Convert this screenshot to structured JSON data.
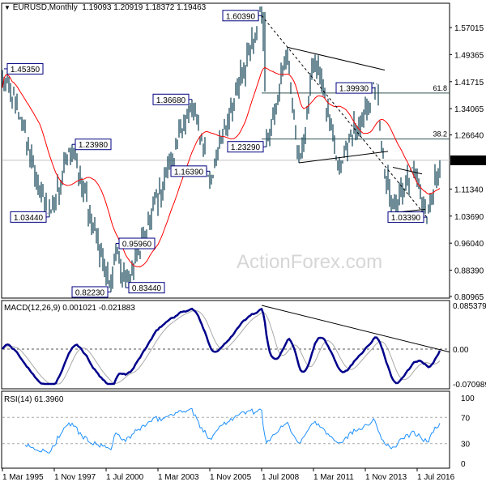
{
  "header": {
    "arrow": "▼",
    "symbol": "EURUSD,Monthly",
    "ohlc": "1.19093 1.20919 1.18372 1.19463"
  },
  "watermark": "ActionForex.com",
  "chart_data": [
    {
      "type": "bar",
      "title": "EURUSD,Monthly",
      "ylim": [
        0.80965,
        1.57015
      ],
      "y_ticks": [
        "1.57015",
        "1.49365",
        "1.41715",
        "1.34065",
        "1.26640",
        "1.19463",
        "1.11340",
        "1.03690",
        "0.96040",
        "0.88390",
        "0.80965"
      ],
      "current_price": "1.19463",
      "keypoints": [
        [
          "1995-03",
          1.4
        ],
        [
          "1995-04",
          1.4535
        ],
        [
          "1996-03",
          1.3
        ],
        [
          "1997-08",
          1.0344
        ],
        [
          "1998-10",
          1.2398
        ],
        [
          "2000-10",
          0.8223
        ],
        [
          "2001-01",
          0.9596
        ],
        [
          "2001-07",
          0.8344
        ],
        [
          "2004-12",
          1.3668
        ],
        [
          "2005-11",
          1.1639
        ],
        [
          "2008-07",
          1.6039
        ],
        [
          "2008-10",
          1.2329
        ],
        [
          "2009-11",
          1.5144
        ],
        [
          "2010-06",
          1.1876
        ],
        [
          "2011-04",
          1.494
        ],
        [
          "2012-07",
          1.2042
        ],
        [
          "2014-05",
          1.3993
        ],
        [
          "2015-03",
          1.0462
        ],
        [
          "2016-05",
          1.1616
        ],
        [
          "2017-01",
          1.0339
        ],
        [
          "2017-09",
          1.19463
        ]
      ],
      "annotations": [
        {
          "text": "1.45350",
          "date": "1995-04",
          "price": 1.4535
        },
        {
          "text": "1.03440",
          "date": "1997-08",
          "price": 1.0344
        },
        {
          "text": "1.23980",
          "date": "1998-10",
          "price": 1.2398
        },
        {
          "text": "0.82230",
          "date": "2000-10",
          "price": 0.8223
        },
        {
          "text": "0.95960",
          "date": "2001-01",
          "price": 0.9596
        },
        {
          "text": "0.83440",
          "date": "2001-07",
          "price": 0.8344
        },
        {
          "text": "1.36680",
          "date": "2004-12",
          "price": 1.3668
        },
        {
          "text": "1.16390",
          "date": "2005-11",
          "price": 1.1639
        },
        {
          "text": "1.60390",
          "date": "2008-07",
          "price": 1.6039
        },
        {
          "text": "1.23290",
          "date": "2008-10",
          "price": 1.2329
        },
        {
          "text": "1.39930",
          "date": "2014-05",
          "price": 1.3993
        },
        {
          "text": "1.03390",
          "date": "2017-01",
          "price": 1.0339
        }
      ],
      "fib_levels": [
        {
          "label": "61.8",
          "price": 1.385
        },
        {
          "label": "38.2",
          "price": 1.255
        }
      ],
      "trendlines": [
        {
          "from": [
            "2008-07",
            1.6039
          ],
          "to": [
            "2017-01",
            1.0339
          ],
          "style": "dashed"
        },
        {
          "from": [
            "2009-11",
            1.5144
          ],
          "to": [
            "2014-11",
            1.45
          ],
          "style": "solid"
        },
        {
          "from": [
            "2010-06",
            1.1876
          ],
          "to": [
            "2015-01",
            1.22
          ],
          "style": "solid"
        },
        {
          "from": [
            "2015-04",
            1.175
          ],
          "to": [
            "2016-10",
            1.156
          ],
          "style": "solid"
        },
        {
          "from": [
            "2015-03",
            1.0462
          ],
          "to": [
            "2016-12",
            1.056
          ],
          "style": "solid"
        }
      ],
      "ma_period": 24,
      "ma_color": "#ff0000",
      "bar_color": "#1f4e5f"
    },
    {
      "type": "line",
      "title": "MACD(12,26,9) 0.001021 -0.021883",
      "ylim": [
        -0.070989,
        0.085379
      ],
      "y_ticks": [
        "0.085379",
        "0.00",
        "-0.070989"
      ],
      "series": [
        {
          "name": "MACD",
          "color": "#00008b"
        },
        {
          "name": "Signal",
          "color": "#a9a9a9"
        }
      ],
      "trendline": {
        "from": [
          "2008-07",
          0.085379
        ],
        "to": [
          "2017-12",
          -0.006
        ]
      }
    },
    {
      "type": "line",
      "title": "RSI(14) 61.3960",
      "ylim": [
        0,
        100
      ],
      "y_ticks": [
        "100",
        "70",
        "30",
        "0"
      ],
      "levels": [
        70,
        30
      ],
      "series": [
        {
          "name": "RSI",
          "color": "#1e90ff"
        }
      ]
    }
  ],
  "x_ticks": [
    [
      "1995-03",
      "1 Mar 1995"
    ],
    [
      "1997-11",
      "1 Nov 1997"
    ],
    [
      "2000-07",
      "1 Jul 2000"
    ],
    [
      "2003-03",
      "1 Mar 2003"
    ],
    [
      "2005-11",
      "1 Nov 2005"
    ],
    [
      "2008-07",
      "1 Jul 2008"
    ],
    [
      "2011-03",
      "1 Mar 2011"
    ],
    [
      "2013-11",
      "1 Nov 2013"
    ],
    [
      "2016-07",
      "1 Jul 2016"
    ]
  ]
}
